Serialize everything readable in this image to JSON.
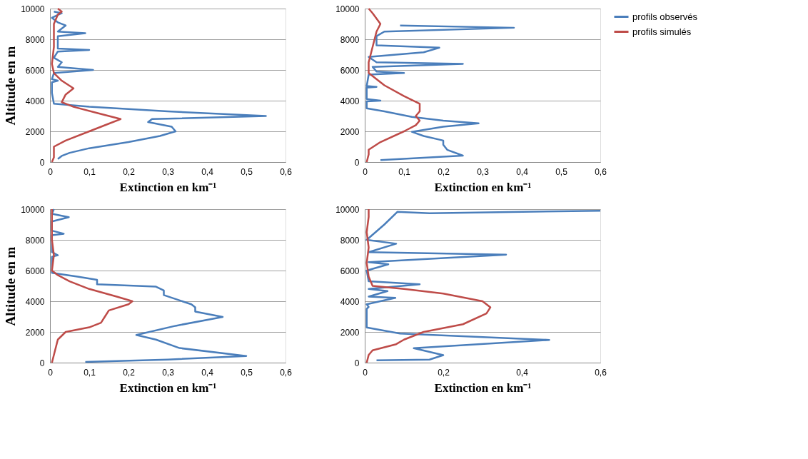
{
  "chart_data": [
    {
      "type": "line",
      "ylabel": "Altitude en m",
      "xlabel": "Extinction en km⁻¹",
      "xlim": [
        0,
        0.6
      ],
      "ylim": [
        0,
        10000
      ],
      "xticks": [
        0,
        {
          "value": 0.1,
          "label": "0,1"
        },
        {
          "value": 0.2,
          "label": "0,2"
        },
        {
          "value": 0.3,
          "label": "0,3"
        },
        {
          "value": 0.4,
          "label": "0,4"
        },
        {
          "value": 0.5,
          "label": "0,5"
        },
        {
          "value": 0.6,
          "label": "0,6"
        }
      ],
      "yticks": [
        0,
        2000,
        4000,
        6000,
        8000,
        10000
      ],
      "grid": "y",
      "marker": "none",
      "line_style": "solid",
      "series": [
        {
          "color": "#4a7ebb",
          "x": [
            0.02,
            0.03,
            0.05,
            0.1,
            0.2,
            0.28,
            0.32,
            0.31,
            0.25,
            0.26,
            0.55,
            0.3,
            0.1,
            0.01,
            0.005,
            0.005,
            0.02,
            0.005,
            0.01,
            0.11,
            0.02,
            0.03,
            0.01,
            0.02,
            0.1,
            0.02,
            0.02,
            0.09,
            0.02,
            0.04,
            0.02,
            0.005,
            0.03,
            0.01
          ],
          "values": [
            200,
            400,
            600,
            900,
            1300,
            1700,
            2000,
            2300,
            2600,
            2800,
            3000,
            3300,
            3600,
            3800,
            4500,
            5200,
            5300,
            5400,
            5800,
            6000,
            6200,
            6500,
            6800,
            7200,
            7300,
            7400,
            8200,
            8400,
            8500,
            8900,
            9100,
            9400,
            9700,
            9800
          ]
        },
        {
          "color": "#be4b48",
          "x": [
            0.005,
            0.01,
            0.01,
            0.04,
            0.1,
            0.15,
            0.18,
            0.12,
            0.06,
            0.03,
            0.04,
            0.06,
            0.03,
            0.01,
            0.005,
            0.01,
            0.01,
            0.02,
            0.03,
            0.02
          ],
          "values": [
            0,
            300,
            1000,
            1400,
            2000,
            2500,
            2800,
            3200,
            3600,
            3900,
            4400,
            4800,
            5300,
            5800,
            6400,
            7500,
            9000,
            9600,
            9800,
            10000
          ]
        }
      ]
    },
    {
      "type": "line",
      "xlabel": "Extinction en km⁻¹",
      "xlim": [
        0,
        0.6
      ],
      "ylim": [
        0,
        10000
      ],
      "xticks": [
        0,
        {
          "value": 0.1,
          "label": "0,1"
        },
        {
          "value": 0.2,
          "label": "0,2"
        },
        {
          "value": 0.3,
          "label": "0,3"
        },
        {
          "value": 0.4,
          "label": "0,4"
        },
        {
          "value": 0.5,
          "label": "0,5"
        },
        {
          "value": 0.6,
          "label": "0,6"
        }
      ],
      "yticks": [
        0,
        2000,
        4000,
        6000,
        8000,
        10000
      ],
      "grid": "y",
      "marker": "none",
      "line_style": "solid",
      "legend": "top right",
      "series": [
        {
          "name": "profils observés",
          "color": "#4a7ebb",
          "x": [
            0.04,
            0.25,
            0.21,
            0.2,
            0.2,
            0.15,
            0.12,
            0.2,
            0.29,
            0.2,
            0.12,
            0.05,
            0.005,
            0.005,
            0.04,
            0.005,
            0.005,
            0.03,
            0.005,
            0.01,
            0.1,
            0.03,
            0.02,
            0.25,
            0.03,
            0.01,
            0.15,
            0.19,
            0.03,
            0.03,
            0.05,
            0.38,
            0.09
          ],
          "values": [
            130,
            420,
            800,
            1130,
            1400,
            1700,
            1970,
            2300,
            2520,
            2700,
            2940,
            3300,
            3500,
            3950,
            4000,
            4100,
            4850,
            4900,
            4950,
            5700,
            5800,
            5900,
            6200,
            6400,
            6500,
            6850,
            7150,
            7450,
            7600,
            8200,
            8500,
            8750,
            8900
          ]
        },
        {
          "name": "profils simulés",
          "color": "#be4b48",
          "x": [
            0.005,
            0.01,
            0.01,
            0.04,
            0.1,
            0.13,
            0.14,
            0.13,
            0.14,
            0.14,
            0.1,
            0.05,
            0.01,
            0.01,
            0.02,
            0.03,
            0.04,
            0.02,
            0.01
          ],
          "values": [
            0,
            500,
            800,
            1300,
            2000,
            2400,
            2700,
            3000,
            3300,
            3800,
            4300,
            5000,
            5800,
            6500,
            7500,
            8500,
            9000,
            9700,
            10000
          ]
        }
      ]
    },
    {
      "type": "line",
      "ylabel": "Altitude en m",
      "xlabel": "Extinction en km⁻¹",
      "xlim": [
        0,
        0.6
      ],
      "ylim": [
        0,
        10000
      ],
      "xticks": [
        0,
        {
          "value": 0.1,
          "label": "0,1"
        },
        {
          "value": 0.2,
          "label": "0,2"
        },
        {
          "value": 0.3,
          "label": "0,3"
        },
        {
          "value": 0.4,
          "label": "0,4"
        },
        {
          "value": 0.5,
          "label": "0,5"
        },
        {
          "value": 0.6,
          "label": "0,6"
        }
      ],
      "yticks": [
        0,
        2000,
        4000,
        6000,
        8000,
        10000
      ],
      "grid": "y",
      "marker": "none",
      "line_style": "solid",
      "series": [
        {
          "color": "#4a7ebb",
          "x": [
            0.09,
            0.3,
            0.5,
            0.33,
            0.27,
            0.22,
            0.32,
            0.44,
            0.37,
            0.37,
            0.36,
            0.29,
            0.29,
            0.27,
            0.12,
            0.12,
            0.07,
            0.005,
            0.005,
            0.02,
            0.005,
            0.005,
            0.035,
            0.005,
            0.005,
            0.048,
            0.005,
            0.01
          ],
          "values": [
            50,
            200,
            430,
            950,
            1500,
            1800,
            2400,
            2980,
            3330,
            3600,
            3800,
            4400,
            4700,
            4950,
            5100,
            5400,
            5600,
            5850,
            6900,
            7000,
            7200,
            8300,
            8400,
            8600,
            9200,
            9480,
            9700,
            10000
          ]
        },
        {
          "color": "#be4b48",
          "x": [
            0.005,
            0.01,
            0.02,
            0.04,
            0.1,
            0.13,
            0.14,
            0.15,
            0.2,
            0.21,
            0.17,
            0.1,
            0.05,
            0.02,
            0.005,
            0.01,
            0.005,
            0.005
          ],
          "values": [
            0,
            500,
            1500,
            2000,
            2300,
            2600,
            3000,
            3400,
            3800,
            4000,
            4300,
            4800,
            5300,
            5700,
            6000,
            7000,
            8000,
            10000
          ]
        }
      ]
    },
    {
      "type": "line",
      "xlabel": "Extinction en km⁻¹",
      "xlim": [
        0,
        0.6
      ],
      "ylim": [
        0,
        10000
      ],
      "xticks": [
        0,
        {
          "value": 0.2,
          "label": "0,2"
        },
        {
          "value": 0.4,
          "label": "0,4"
        },
        {
          "value": 0.6,
          "label": "0,6"
        }
      ],
      "yticks": [
        0,
        2000,
        4000,
        6000,
        8000,
        10000
      ],
      "grid": "y",
      "marker": "none",
      "line_style": "solid",
      "series": [
        {
          "color": "#4a7ebb",
          "x": [
            0.03,
            0.165,
            0.2,
            0.125,
            0.47,
            0.09,
            0.005,
            0.005,
            0.01,
            0.005,
            0.078,
            0.01,
            0.058,
            0.01,
            0.14,
            0.01,
            0.005,
            0.06,
            0.01,
            0.36,
            0.01,
            0.08,
            0.005,
            0.05,
            0.083,
            0.165,
            0.6
          ],
          "values": [
            150,
            200,
            490,
            940,
            1480,
            1900,
            2290,
            3500,
            3630,
            3800,
            4220,
            4300,
            4660,
            4800,
            5110,
            5300,
            6000,
            6410,
            6550,
            7040,
            7200,
            7750,
            8000,
            9000,
            9820,
            9730,
            9900
          ]
        },
        {
          "color": "#be4b48",
          "x": [
            0.005,
            0.01,
            0.02,
            0.08,
            0.1,
            0.15,
            0.25,
            0.31,
            0.32,
            0.3,
            0.2,
            0.1,
            0.02,
            0.01,
            0.005,
            0.01,
            0.005,
            0.01,
            0.01
          ],
          "values": [
            0,
            500,
            800,
            1200,
            1500,
            2000,
            2500,
            3200,
            3600,
            4000,
            4500,
            4800,
            5000,
            5600,
            6500,
            7500,
            8500,
            9500,
            10000
          ]
        }
      ]
    }
  ]
}
